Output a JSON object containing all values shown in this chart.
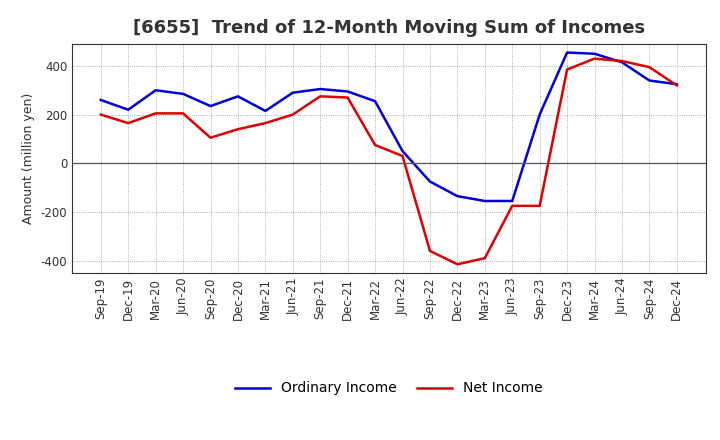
{
  "title": "[6655]  Trend of 12-Month Moving Sum of Incomes",
  "ylabel": "Amount (million yen)",
  "x_labels": [
    "Sep-19",
    "Dec-19",
    "Mar-20",
    "Jun-20",
    "Sep-20",
    "Dec-20",
    "Mar-21",
    "Jun-21",
    "Sep-21",
    "Dec-21",
    "Mar-22",
    "Jun-22",
    "Sep-22",
    "Dec-22",
    "Mar-23",
    "Jun-23",
    "Sep-23",
    "Dec-23",
    "Mar-24",
    "Jun-24",
    "Sep-24",
    "Dec-24"
  ],
  "ordinary_income": [
    260,
    220,
    300,
    285,
    235,
    275,
    215,
    290,
    305,
    295,
    255,
    50,
    -75,
    -135,
    -155,
    -155,
    200,
    455,
    450,
    415,
    340,
    325
  ],
  "net_income": [
    200,
    165,
    205,
    205,
    105,
    140,
    165,
    200,
    275,
    270,
    75,
    30,
    -360,
    -415,
    -390,
    -175,
    -175,
    385,
    430,
    420,
    395,
    320
  ],
  "ylim": [
    -450,
    490
  ],
  "yticks": [
    -400,
    -200,
    0,
    200,
    400
  ],
  "ordinary_color": "#0000dd",
  "net_color": "#dd0000",
  "line_width": 1.8,
  "background_color": "#ffffff",
  "grid_color": "#999999",
  "title_fontsize": 13,
  "axis_fontsize": 9,
  "tick_fontsize": 8.5,
  "legend_fontsize": 10,
  "title_color": "#333333"
}
